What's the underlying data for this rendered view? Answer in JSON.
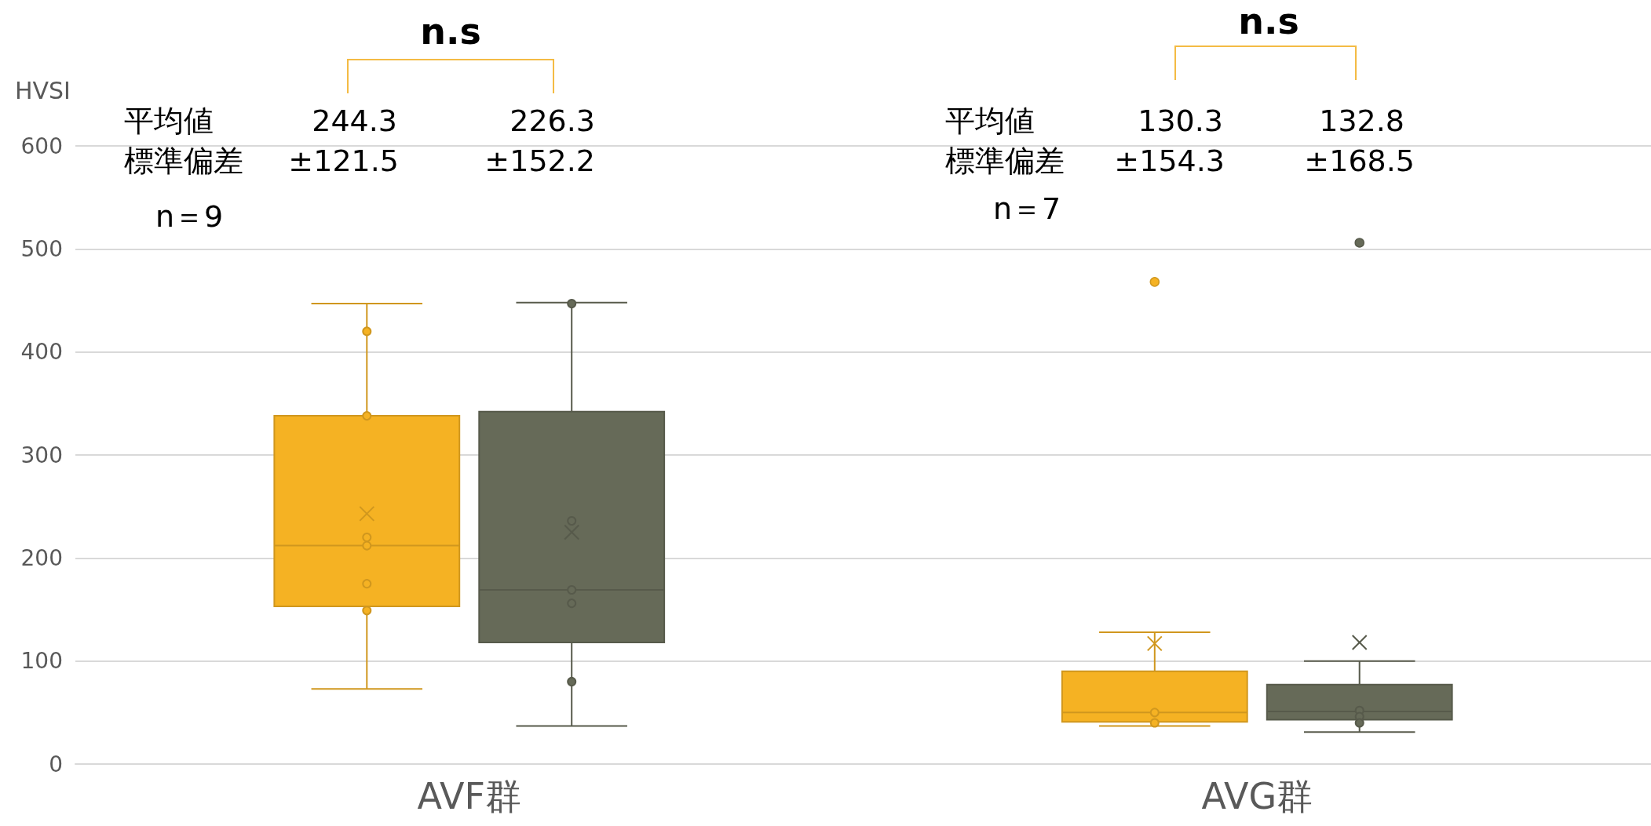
{
  "chart_data": {
    "type": "box",
    "ylabel": "HVSI",
    "categories": [
      "AVF群",
      "AVG群"
    ],
    "ylim": [
      0,
      600
    ],
    "yticks": [
      0,
      100,
      200,
      300,
      400,
      500,
      600
    ],
    "grid": "y",
    "marker": "circle",
    "annotations": [
      "n.s",
      "n.s",
      "平均値",
      "244.3",
      "226.3",
      "標準偏差",
      "±121.5",
      "±152.2",
      "n＝9",
      "平均値",
      "130.3",
      "132.8",
      "標準偏差",
      "±154.3",
      "±168.5",
      "n＝7"
    ],
    "series": [
      {
        "color": "#f5b223",
        "boxes": [
          {
            "low": 73,
            "q1": 153,
            "median": 212,
            "q3": 338,
            "high": 447,
            "mean": 243
          },
          {
            "low": 37,
            "q1": 41,
            "median": 50,
            "q3": 90,
            "high": 128,
            "mean": 117,
            "outliers": [
              468
            ]
          }
        ]
      },
      {
        "color": "#666a58",
        "boxes": [
          {
            "low": 37,
            "q1": 118,
            "median": 169,
            "q3": 342,
            "high": 448,
            "mean": 225
          },
          {
            "low": 31,
            "q1": 43,
            "median": 51,
            "q3": 77,
            "high": 100,
            "mean": 118,
            "outliers": [
              506
            ]
          }
        ]
      },
      {
        "type": "scatter",
        "color": "#f5b223",
        "x": [
          "AVF群",
          "AVF群",
          "AVF群",
          "AVF群",
          "AVF群",
          "AVF群",
          "AVG群",
          "AVG群"
        ],
        "values": [
          420,
          338,
          220,
          212,
          175,
          149,
          50,
          40
        ]
      },
      {
        "type": "scatter",
        "color": "#666a58",
        "x": [
          "AVF群",
          "AVF群",
          "AVF群",
          "AVF群",
          "AVF群",
          "AVG群",
          "AVG群",
          "AVG群"
        ],
        "values": [
          447,
          236,
          169,
          156,
          80,
          52,
          46,
          40
        ]
      }
    ]
  }
}
